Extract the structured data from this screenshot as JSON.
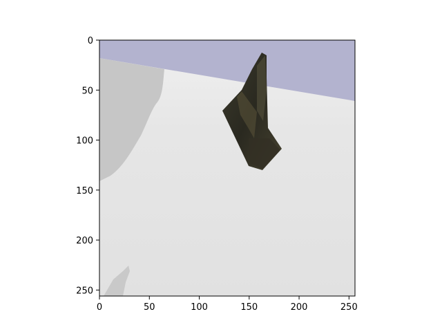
{
  "figure": {
    "image_extent": {
      "x_min": 0,
      "x_max": 256,
      "y_min": 0,
      "y_max": 256
    },
    "y_axis_inverted": true,
    "x_ticks": [
      0,
      50,
      100,
      150,
      200,
      250
    ],
    "y_ticks": [
      0,
      50,
      100,
      150,
      200,
      250
    ],
    "x_tick_labels": [
      "0",
      "50",
      "100",
      "150",
      "200",
      "250"
    ],
    "y_tick_labels": [
      "0",
      "50",
      "100",
      "150",
      "200",
      "250"
    ]
  },
  "scene": {
    "description_colors": {
      "sky": "#b3b3cf",
      "ground_light": "#e8e8e8",
      "ground_mid": "#e2e2e2",
      "shadow": "#c6c6c6",
      "object_dark": "#2c2a20",
      "object_mid": "#4a4632"
    }
  }
}
